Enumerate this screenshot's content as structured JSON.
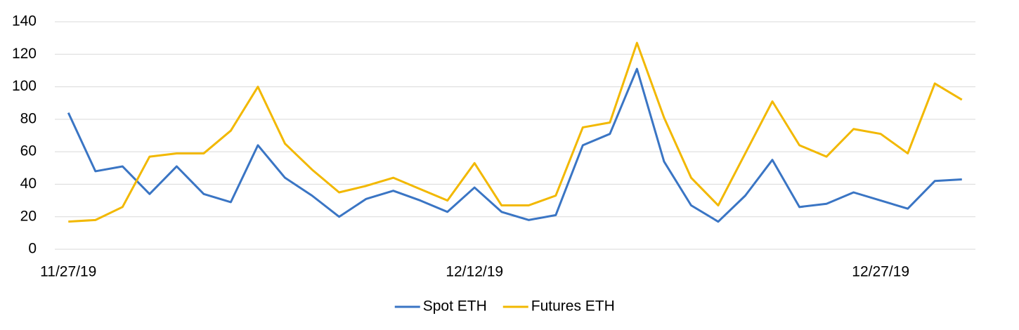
{
  "chart_data": {
    "type": "line",
    "categories": [
      "11/27/19",
      null,
      null,
      null,
      null,
      null,
      null,
      null,
      null,
      null,
      null,
      null,
      null,
      null,
      null,
      "12/12/19",
      null,
      null,
      null,
      null,
      null,
      null,
      null,
      null,
      null,
      null,
      null,
      null,
      null,
      null,
      "12/27/19",
      null,
      null,
      null
    ],
    "series": [
      {
        "name": "Spot ETH",
        "color": "#3a75c4",
        "values": [
          84,
          48,
          51,
          34,
          51,
          34,
          29,
          64,
          44,
          33,
          20,
          31,
          36,
          30,
          23,
          38,
          23,
          18,
          21,
          64,
          71,
          111,
          54,
          27,
          17,
          33,
          55,
          26,
          28,
          35,
          30,
          25,
          42,
          43
        ]
      },
      {
        "name": "Futures ETH",
        "color": "#f2b800",
        "values": [
          17,
          18,
          26,
          57,
          59,
          59,
          73,
          100,
          65,
          49,
          35,
          39,
          44,
          37,
          30,
          53,
          27,
          27,
          33,
          75,
          78,
          127,
          81,
          44,
          27,
          59,
          91,
          64,
          57,
          74,
          71,
          59,
          102,
          92
        ]
      }
    ],
    "ylim": [
      0,
      140
    ],
    "yticks": [
      0,
      20,
      40,
      60,
      80,
      100,
      120,
      140
    ],
    "grid": true,
    "legend": "bottom"
  }
}
